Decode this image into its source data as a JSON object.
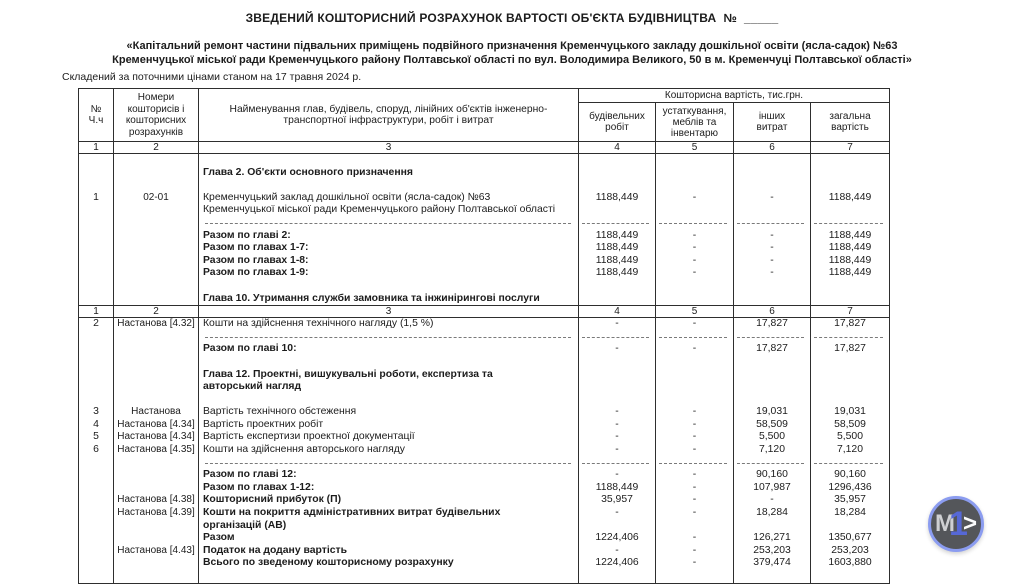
{
  "page": {
    "title": "ЗВЕДЕНИЙ КОШТОРИСНИЙ РОЗРАХУНОК ВАРТОСТІ ОБ'ЄКТА БУДІВНИЦТВА  №  _____",
    "subtitle_line1": "«Капітальний ремонт частини підвальних приміщень подвійного призначення Кременчуцького закладу дошкільної освіти (ясла-садок) №63",
    "subtitle_line2": "Кременчуцької міської ради Кременчуцького району Полтавської області по вул. Володимира Великого, 50 в м. Кременчуці Полтавської області»",
    "date_line": "Складений за поточними цінами станом на 17 травня 2024 р."
  },
  "table": {
    "header": {
      "col_no": "№\nЧ.ч",
      "col_refs": "Номери\nкошторисів і\nкошторисних\nрозрахунків",
      "col_name": "Найменування глав, будівель, споруд, лінійних об'єктів інженерно-\nтранспортної інфраструктури, робіт і витрат",
      "group_cost": "Кошторисна вартість, тис.грн.",
      "col_build": "будівельних\nробіт",
      "col_equip": "устаткування,\nмеблів та\nінвентарю",
      "col_other": "інших\nвитрат",
      "col_total": "загальна\nвартість"
    },
    "col_numbers": [
      "1",
      "2",
      "3",
      "4",
      "5",
      "6",
      "7"
    ],
    "block1": [
      {},
      {
        "t": "Глава 2. Об'єкти основного призначення",
        "bold": true
      },
      {},
      {
        "n": "1",
        "r": "02-01",
        "t": "Кременчуцький заклад дошкільної освіти (ясла-садок) №63",
        "v": [
          "1188,449",
          "-",
          "-",
          "1188,449"
        ]
      },
      {
        "t": "Кременчуцької міської ради Кременчуцького району Полтавської області"
      },
      {
        "dashed": true
      },
      {
        "t": "Разом по главі 2:",
        "bold": true,
        "v": [
          "1188,449",
          "-",
          "-",
          "1188,449"
        ]
      },
      {
        "t": "Разом по главах 1-7:",
        "bold": true,
        "v": [
          "1188,449",
          "-",
          "-",
          "1188,449"
        ]
      },
      {
        "t": "Разом по главах 1-8:",
        "bold": true,
        "v": [
          "1188,449",
          "-",
          "-",
          "1188,449"
        ]
      },
      {
        "t": "Разом по главах 1-9:",
        "bold": true,
        "v": [
          "1188,449",
          "-",
          "-",
          "1188,449"
        ]
      },
      {},
      {
        "t": "Глава 10. Утримання служби замовника та інжинірингові послуги",
        "bold": true
      }
    ],
    "block2": [
      {
        "n": "2",
        "r": "Настанова [4.32]",
        "t": "Кошти на здійснення технічного нагляду (1,5 %)",
        "v": [
          "-",
          "-",
          "17,827",
          "17,827"
        ]
      },
      {
        "dashed": true
      },
      {
        "t": "Разом по главі 10:",
        "bold": true,
        "v": [
          "-",
          "-",
          "17,827",
          "17,827"
        ]
      },
      {},
      {
        "t": "Глава 12. Проектні, вишукувальні роботи, експертиза та",
        "bold": true
      },
      {
        "t": "авторський нагляд",
        "bold": true
      },
      {},
      {
        "n": "3",
        "r": "Настанова",
        "t": "Вартість технічного обстеження",
        "v": [
          "-",
          "-",
          "19,031",
          "19,031"
        ]
      },
      {
        "n": "4",
        "r": "Настанова [4.34]",
        "t": "Вартість проектних робіт",
        "v": [
          "-",
          "-",
          "58,509",
          "58,509"
        ]
      },
      {
        "n": "5",
        "r": "Настанова [4.34]",
        "t": "Вартість експертизи проектної документації",
        "v": [
          "-",
          "-",
          "5,500",
          "5,500"
        ]
      },
      {
        "n": "6",
        "r": "Настанова [4.35]",
        "t": "Кошти на здійснення авторського нагляду",
        "v": [
          "-",
          "-",
          "7,120",
          "7,120"
        ]
      },
      {
        "dashed": true
      },
      {
        "t": "Разом по главі 12:",
        "bold": true,
        "v": [
          "-",
          "-",
          "90,160",
          "90,160"
        ]
      },
      {
        "t": "Разом по главах 1-12:",
        "bold": true,
        "v": [
          "1188,449",
          "-",
          "107,987",
          "1296,436"
        ]
      },
      {
        "r": "Настанова [4.38]",
        "t": "Кошторисний прибуток (П)",
        "bold": true,
        "v": [
          "35,957",
          "-",
          "-",
          "35,957"
        ]
      },
      {
        "r": "Настанова [4.39]",
        "t": "Кошти на покриття адміністративних витрат будівельних",
        "bold": true,
        "v": [
          "-",
          "-",
          "18,284",
          "18,284"
        ]
      },
      {
        "t": "організацій (АВ)",
        "bold": true
      },
      {
        "t": "Разом",
        "bold": true,
        "v": [
          "1224,406",
          "-",
          "126,271",
          "1350,677"
        ]
      },
      {
        "r": "Настанова [4.43]",
        "t": "Податок на додану вартість",
        "bold": true,
        "v": [
          "-",
          "-",
          "253,203",
          "253,203"
        ]
      },
      {
        "t": "Всього по зведеному кошторисному розрахунку",
        "bold": true,
        "v": [
          "1224,406",
          "-",
          "379,474",
          "1603,880"
        ]
      },
      {}
    ]
  },
  "logo": {
    "m": "M",
    "one": "1",
    "gt": ">"
  }
}
